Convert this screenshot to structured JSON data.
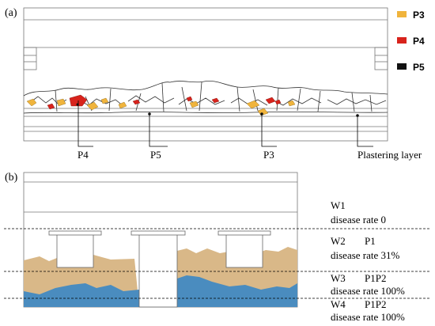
{
  "panel_a": {
    "label": "(a)",
    "legend": [
      {
        "label": "P3",
        "color": "#f0b43c"
      },
      {
        "label": "P4",
        "color": "#d8231c"
      },
      {
        "label": "P5",
        "color": "#111111"
      }
    ],
    "callouts": [
      "P4",
      "P5",
      "P3",
      "Plastering layer"
    ]
  },
  "panel_b": {
    "label": "(b)",
    "colors": {
      "tan": "#d9b888",
      "blue": "#4a8cbf"
    },
    "rows": [
      {
        "name": "W1",
        "code": "",
        "rate": "disease  rate 0"
      },
      {
        "name": "W2",
        "code": "P1",
        "rate": "disease  rate 31%"
      },
      {
        "name": "W3",
        "code": "P1P2",
        "rate": "disease  rate 100%"
      },
      {
        "name": "W4",
        "code": "P1P2",
        "rate": "disease  rate 100%"
      }
    ]
  }
}
